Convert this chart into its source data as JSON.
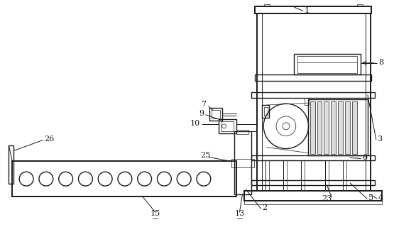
{
  "bg_color": "#ffffff",
  "line_color": "#1a1a1a",
  "lw_thick": 1.4,
  "lw_med": 1.0,
  "lw_thin": 0.7,
  "lw_hair": 0.5
}
